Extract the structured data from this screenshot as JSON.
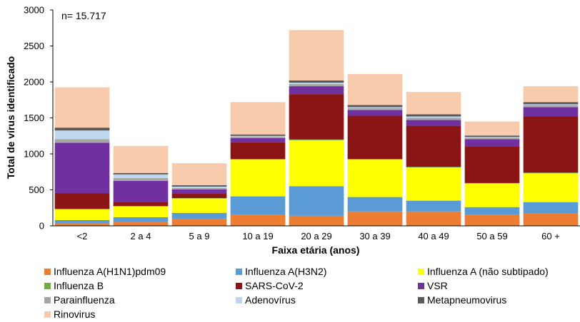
{
  "chart_data": {
    "type": "bar",
    "stacked": true,
    "annotation": "n= 15.717",
    "xlabel": "Faixa etária (anos)",
    "ylabel": "Total de vírus identificado",
    "ylim": [
      0,
      3000
    ],
    "yticks": [
      0,
      500,
      1000,
      1500,
      2000,
      2500,
      3000
    ],
    "grid": false,
    "legend_position": "bottom",
    "categories": [
      "<2",
      "2 a 4",
      "5 a 9",
      "10 a 19",
      "20 a 29",
      "30 a 39",
      "40 a 49",
      "50 a 59",
      "60 +"
    ],
    "series": [
      {
        "name": "Influenza A(H1N1)pdm09",
        "color": "#ED7D31",
        "values": [
          40,
          60,
          100,
          150,
          140,
          200,
          200,
          150,
          170
        ]
      },
      {
        "name": "Influenza A(H3N2)",
        "color": "#5B9BD5",
        "values": [
          40,
          60,
          80,
          260,
          410,
          200,
          150,
          110,
          160
        ]
      },
      {
        "name": "Influenza A (não subtipado)",
        "color": "#FFFF00",
        "values": [
          150,
          150,
          200,
          510,
          640,
          520,
          460,
          330,
          400
        ]
      },
      {
        "name": "Influenza B",
        "color": "#70AD47",
        "values": [
          5,
          5,
          5,
          10,
          10,
          10,
          10,
          5,
          10
        ]
      },
      {
        "name": "SARS-CoV-2",
        "color": "#8B1414",
        "values": [
          220,
          60,
          60,
          230,
          630,
          600,
          570,
          510,
          780
        ]
      },
      {
        "name": "VSR",
        "color": "#7030A0",
        "values": [
          700,
          290,
          60,
          60,
          110,
          80,
          80,
          100,
          130
        ]
      },
      {
        "name": "Parainfluenza",
        "color": "#A6A6A6",
        "values": [
          50,
          40,
          20,
          20,
          30,
          30,
          30,
          20,
          30
        ]
      },
      {
        "name": "Adenovírus",
        "color": "#BDD7EE",
        "values": [
          120,
          50,
          20,
          10,
          20,
          10,
          20,
          10,
          10
        ]
      },
      {
        "name": "Metapneumovirus",
        "color": "#595959",
        "values": [
          40,
          20,
          20,
          20,
          30,
          30,
          30,
          20,
          30
        ]
      },
      {
        "name": "Rinovirus",
        "color": "#F8CBAD",
        "values": [
          560,
          375,
          305,
          450,
          700,
          430,
          310,
          195,
          220
        ]
      }
    ]
  }
}
